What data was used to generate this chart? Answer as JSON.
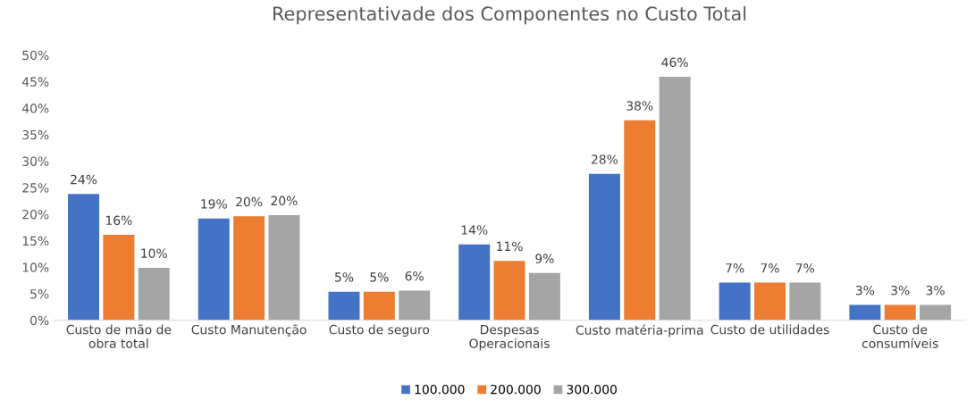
{
  "chart_data": {
    "type": "bar",
    "title": "Representativade dos Componentes no Custo Total",
    "categories": [
      "Custo de mão de\nobra total",
      "Custo Manutenção",
      "Custo de seguro",
      "Despesas\nOperacionais",
      "Custo matéria-prima",
      "Custo de utilidades",
      "Custo de\nconsumíveis"
    ],
    "series": [
      {
        "name": "100.000",
        "color": "#4472c4",
        "values": [
          23.8,
          19.2,
          5.4,
          14.3,
          27.6,
          7.1,
          2.9
        ],
        "value_labels": [
          "24%",
          "19%",
          "5%",
          "14%",
          "28%",
          "7%",
          "3%"
        ]
      },
      {
        "name": "200.000",
        "color": "#ed7d31",
        "values": [
          16.1,
          19.6,
          5.4,
          11.2,
          37.7,
          7.1,
          2.9
        ],
        "value_labels": [
          "16%",
          "20%",
          "5%",
          "11%",
          "38%",
          "7%",
          "3%"
        ]
      },
      {
        "name": "300.000",
        "color": "#a5a5a5",
        "values": [
          9.9,
          19.8,
          5.6,
          8.9,
          45.9,
          7.1,
          2.9
        ],
        "value_labels": [
          "10%",
          "20%",
          "6%",
          "9%",
          "46%",
          "7%",
          "3%"
        ]
      }
    ],
    "ylim": [
      0,
      50
    ],
    "yticks": [
      {
        "value": 0,
        "label": "0%"
      },
      {
        "value": 5,
        "label": "5%"
      },
      {
        "value": 10,
        "label": "10%"
      },
      {
        "value": 15,
        "label": "15%"
      },
      {
        "value": 20,
        "label": "20%"
      },
      {
        "value": 25,
        "label": "25%"
      },
      {
        "value": 30,
        "label": "30%"
      },
      {
        "value": 35,
        "label": "35%"
      },
      {
        "value": 40,
        "label": "40%"
      },
      {
        "value": 45,
        "label": "45%"
      },
      {
        "value": 50,
        "label": "50%"
      }
    ],
    "grid": false,
    "legend": "bottom"
  }
}
